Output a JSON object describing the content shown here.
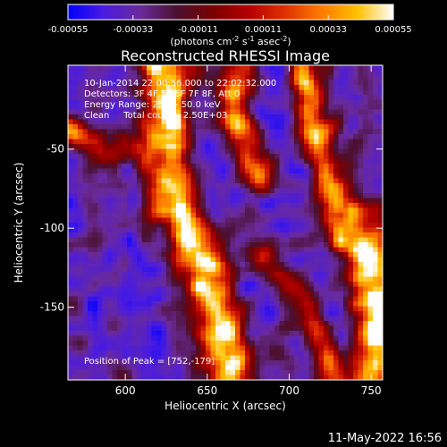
{
  "chart_data": {
    "type": "heatmap",
    "title": "Reconstructed RHESSI Image",
    "xlabel": "Heliocentric X (arcsec)",
    "ylabel": "Heliocentric Y (arcsec)",
    "xlim": [
      565,
      757
    ],
    "ylim": [
      -196,
      3
    ],
    "x_ticks": [
      600,
      650,
      700,
      750
    ],
    "y_ticks": [
      -50,
      -100,
      -150
    ],
    "colorbar": {
      "label_parts": [
        "(photons cm",
        "-2",
        " s",
        "-1",
        " asec",
        "-2",
        ")"
      ],
      "range": [
        -0.00055,
        0.00055
      ],
      "ticks": [
        "-0.00055",
        "-0.00033",
        "-0.00011",
        "0.00011",
        "0.00033",
        "0.00055"
      ],
      "colormap": [
        "#0000ff",
        "#4a1be0",
        "#6a2a9a",
        "#4a1030",
        "#7a0000",
        "#b40000",
        "#e03000",
        "#ff7a00",
        "#ffc000",
        "#ffffff"
      ]
    },
    "annotations": [
      "10-Jan-2014 22:00:56.000 to 22:02:32.000",
      "Detectors: 3F 4F 5F 6F 7F 8F, Att 0",
      "Energy Range: 25.0 - 50.0 keV",
      "Clean     Total counts: 2.50E+03"
    ],
    "peak_label": "Position of Peak = [752,-179]",
    "grid": false
  },
  "footer": {
    "timestamp": "11-May-2022 16:56"
  }
}
